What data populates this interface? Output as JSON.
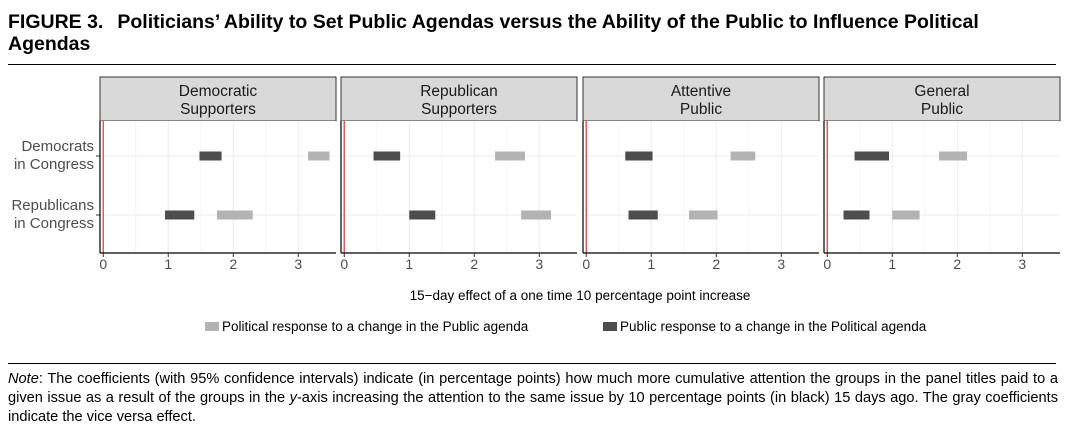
{
  "figure": {
    "label": "FIGURE 3.",
    "title": "Politicians’ Ability to Set Public Agendas versus the Ability of the Public to Influence Political Agendas"
  },
  "note": {
    "lead": "Note",
    "text_1": ": The coefficients (with 95% confidence intervals) indicate (in percentage points) how much more cumulative attention the groups in the panel titles paid to a given issue as a result of the groups in the ",
    "italic": "y",
    "text_2": "-axis increasing the attention to the same issue by 10 percentage points (in black) 15 days ago. The gray coefficients indicate the vice versa effect."
  },
  "chart_data": {
    "type": "interval",
    "xlabel": "15−day effect of a one time 10 percentage point increase",
    "xticks": [
      0,
      1,
      2,
      3
    ],
    "xlim": [
      -0.05,
      3.58
    ],
    "rows": [
      "Democrats\nin Congress",
      "Republicans\nin Congress"
    ],
    "reference_line": 0,
    "colors": {
      "political": "#b3b3b3",
      "public": "#4d4d4d",
      "reference": "#d9534f",
      "strip": "#d9d9d9"
    },
    "legend": [
      {
        "key": "political",
        "label": "Political response to a change in the Public agenda"
      },
      {
        "key": "public",
        "label": "Public response to a change in the Political agenda"
      }
    ],
    "panels": [
      {
        "title": [
          "Democratic",
          "Supporters"
        ],
        "intervals": [
          {
            "row": 0,
            "series": "public",
            "low": 1.48,
            "high": 1.82
          },
          {
            "row": 0,
            "series": "political",
            "low": 3.15,
            "high": 3.48
          },
          {
            "row": 1,
            "series": "public",
            "low": 0.95,
            "high": 1.4
          },
          {
            "row": 1,
            "series": "political",
            "low": 1.75,
            "high": 2.3
          }
        ]
      },
      {
        "title": [
          "Republican",
          "Supporters"
        ],
        "intervals": [
          {
            "row": 0,
            "series": "public",
            "low": 0.45,
            "high": 0.86
          },
          {
            "row": 0,
            "series": "political",
            "low": 2.32,
            "high": 2.78
          },
          {
            "row": 1,
            "series": "public",
            "low": 1.0,
            "high": 1.4
          },
          {
            "row": 1,
            "series": "political",
            "low": 2.72,
            "high": 3.18
          }
        ]
      },
      {
        "title": [
          "Attentive",
          "Public"
        ],
        "intervals": [
          {
            "row": 0,
            "series": "public",
            "low": 0.6,
            "high": 1.02
          },
          {
            "row": 0,
            "series": "political",
            "low": 2.22,
            "high": 2.6
          },
          {
            "row": 1,
            "series": "public",
            "low": 0.65,
            "high": 1.1
          },
          {
            "row": 1,
            "series": "political",
            "low": 1.58,
            "high": 2.02
          }
        ]
      },
      {
        "title": [
          "General",
          "Public"
        ],
        "intervals": [
          {
            "row": 0,
            "series": "public",
            "low": 0.42,
            "high": 0.95
          },
          {
            "row": 0,
            "series": "political",
            "low": 1.72,
            "high": 2.15
          },
          {
            "row": 1,
            "series": "public",
            "low": 0.25,
            "high": 0.65
          },
          {
            "row": 1,
            "series": "political",
            "low": 1.0,
            "high": 1.42
          }
        ]
      }
    ]
  }
}
